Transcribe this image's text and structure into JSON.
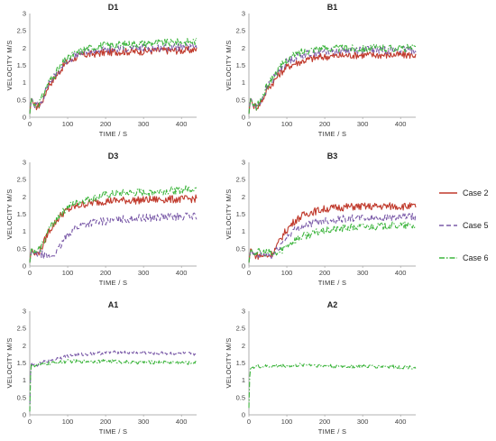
{
  "colors": {
    "case2": "#c0392b",
    "case5": "#7a5aa8",
    "case6": "#3db53d",
    "axis": "#999999",
    "text": "#333333"
  },
  "legend": {
    "placement": "right",
    "items": [
      {
        "label": "Case 2",
        "color": "#c0392b",
        "dash": "solid"
      },
      {
        "label": "Case 5",
        "color": "#7a5aa8",
        "dash": "dashed"
      },
      {
        "label": "Case 6",
        "color": "#3db53d",
        "dash": "dashdot"
      }
    ]
  },
  "chart_data": [
    {
      "type": "line",
      "title": "D1",
      "xlabel": "TIME / S",
      "ylabel": "VELOCITY M/S",
      "xlim": [
        0,
        440
      ],
      "ylim": [
        0,
        3
      ],
      "xticks": [
        0,
        100,
        200,
        300,
        400
      ],
      "yticks": [
        0,
        0.5,
        1,
        1.5,
        2,
        2.5,
        3
      ],
      "yticklabels": [
        "0",
        "0.5",
        "1",
        "1.5",
        "2",
        "2.5",
        "3"
      ],
      "series": [
        {
          "name": "Case 2",
          "x": [
            0,
            5,
            10,
            20,
            30,
            40,
            50,
            60,
            70,
            80,
            90,
            100,
            120,
            140,
            160,
            180,
            200,
            240,
            280,
            320,
            360,
            400,
            440
          ],
          "y": [
            0.1,
            0.6,
            0.35,
            0.3,
            0.4,
            0.65,
            0.95,
            1.05,
            1.2,
            1.35,
            1.5,
            1.6,
            1.72,
            1.8,
            1.82,
            1.85,
            1.87,
            1.9,
            1.9,
            1.92,
            1.93,
            1.93,
            1.95
          ]
        },
        {
          "name": "Case 5",
          "x": [
            0,
            5,
            10,
            20,
            30,
            40,
            50,
            60,
            70,
            80,
            90,
            100,
            120,
            140,
            160,
            180,
            200,
            240,
            280,
            320,
            360,
            400,
            440
          ],
          "y": [
            0.1,
            0.6,
            0.35,
            0.35,
            0.45,
            0.7,
            1.0,
            1.1,
            1.25,
            1.4,
            1.55,
            1.65,
            1.78,
            1.85,
            1.9,
            1.92,
            1.95,
            1.98,
            2.0,
            2.0,
            2.02,
            2.03,
            2.05
          ]
        },
        {
          "name": "Case 6",
          "x": [
            0,
            5,
            10,
            20,
            30,
            40,
            50,
            60,
            70,
            80,
            90,
            100,
            120,
            140,
            160,
            180,
            200,
            240,
            280,
            320,
            360,
            400,
            440
          ],
          "y": [
            0.1,
            0.6,
            0.35,
            0.35,
            0.5,
            0.75,
            1.05,
            1.15,
            1.3,
            1.45,
            1.6,
            1.7,
            1.85,
            1.95,
            2.0,
            2.05,
            2.08,
            2.1,
            2.12,
            2.15,
            2.15,
            2.17,
            2.2
          ]
        }
      ]
    },
    {
      "type": "line",
      "title": "B1",
      "xlabel": "TIME / S",
      "ylabel": "VELOCITY M/S",
      "xlim": [
        0,
        440
      ],
      "ylim": [
        0,
        3
      ],
      "xticks": [
        0,
        100,
        200,
        300,
        400
      ],
      "yticks": [
        0,
        0.5,
        1,
        1.5,
        2,
        2.5,
        3
      ],
      "yticklabels": [
        "0",
        "0.5",
        "1",
        "1.5",
        "2",
        "2.5",
        "3"
      ],
      "series": [
        {
          "name": "Case 2",
          "x": [
            0,
            5,
            10,
            20,
            30,
            40,
            50,
            60,
            70,
            80,
            90,
            100,
            120,
            140,
            160,
            180,
            200,
            240,
            280,
            320,
            360,
            400,
            440
          ],
          "y": [
            0.1,
            0.6,
            0.35,
            0.3,
            0.4,
            0.6,
            0.85,
            0.95,
            1.1,
            1.25,
            1.35,
            1.45,
            1.55,
            1.62,
            1.68,
            1.72,
            1.75,
            1.78,
            1.8,
            1.8,
            1.8,
            1.8,
            1.8
          ]
        },
        {
          "name": "Case 5",
          "x": [
            0,
            5,
            10,
            20,
            30,
            40,
            50,
            60,
            70,
            80,
            90,
            100,
            120,
            140,
            160,
            180,
            200,
            240,
            280,
            320,
            360,
            400,
            440
          ],
          "y": [
            0.1,
            0.6,
            0.35,
            0.3,
            0.45,
            0.65,
            0.9,
            1.05,
            1.2,
            1.35,
            1.5,
            1.6,
            1.72,
            1.8,
            1.85,
            1.88,
            1.9,
            1.92,
            1.95,
            1.95,
            1.95,
            1.95,
            1.95
          ]
        },
        {
          "name": "Case 6",
          "x": [
            0,
            5,
            10,
            20,
            30,
            40,
            50,
            60,
            70,
            80,
            90,
            100,
            120,
            140,
            160,
            180,
            200,
            240,
            280,
            320,
            360,
            400,
            440
          ],
          "y": [
            0.1,
            0.6,
            0.35,
            0.3,
            0.45,
            0.7,
            0.95,
            1.1,
            1.25,
            1.4,
            1.55,
            1.65,
            1.8,
            1.9,
            1.95,
            2.0,
            2.0,
            2.0,
            2.0,
            2.0,
            2.0,
            2.0,
            2.0
          ]
        }
      ]
    },
    {
      "type": "line",
      "title": "D3",
      "xlabel": "TIME / S",
      "ylabel": "VELOCITY M/S",
      "xlim": [
        0,
        440
      ],
      "ylim": [
        0,
        3
      ],
      "xticks": [
        0,
        100,
        200,
        300,
        400
      ],
      "yticks": [
        0,
        0.5,
        1,
        1.5,
        2,
        2.5,
        3
      ],
      "yticklabels": [
        "0",
        "0.5",
        "1",
        "1.5",
        "2",
        "2.5",
        "3"
      ],
      "series": [
        {
          "name": "Case 2",
          "x": [
            0,
            5,
            10,
            20,
            30,
            40,
            50,
            60,
            70,
            80,
            90,
            100,
            120,
            140,
            160,
            180,
            200,
            240,
            280,
            320,
            360,
            400,
            440
          ],
          "y": [
            0.1,
            0.55,
            0.35,
            0.35,
            0.5,
            0.75,
            1.0,
            1.15,
            1.3,
            1.45,
            1.55,
            1.62,
            1.72,
            1.78,
            1.82,
            1.85,
            1.88,
            1.9,
            1.9,
            1.92,
            1.93,
            1.93,
            1.95
          ]
        },
        {
          "name": "Case 5",
          "x": [
            0,
            5,
            10,
            20,
            30,
            40,
            50,
            60,
            70,
            80,
            90,
            100,
            120,
            140,
            160,
            180,
            200,
            240,
            280,
            320,
            360,
            400,
            440
          ],
          "y": [
            0.1,
            0.45,
            0.35,
            0.35,
            0.35,
            0.3,
            0.25,
            0.3,
            0.4,
            0.55,
            0.75,
            0.9,
            1.1,
            1.2,
            1.25,
            1.28,
            1.3,
            1.35,
            1.38,
            1.4,
            1.42,
            1.43,
            1.45
          ]
        },
        {
          "name": "Case 6",
          "x": [
            0,
            5,
            10,
            20,
            30,
            40,
            50,
            60,
            70,
            80,
            90,
            100,
            120,
            140,
            160,
            180,
            200,
            240,
            280,
            320,
            360,
            400,
            440
          ],
          "y": [
            0.1,
            0.55,
            0.35,
            0.4,
            0.55,
            0.8,
            1.05,
            1.2,
            1.35,
            1.5,
            1.6,
            1.7,
            1.82,
            1.9,
            1.95,
            2.0,
            2.05,
            2.1,
            2.12,
            2.15,
            2.17,
            2.2,
            2.25
          ]
        }
      ]
    },
    {
      "type": "line",
      "title": "B3",
      "xlabel": "TIME / S",
      "ylabel": "VELOCITY M/S",
      "xlim": [
        0,
        440
      ],
      "ylim": [
        0,
        3
      ],
      "xticks": [
        0,
        100,
        200,
        300,
        400
      ],
      "yticks": [
        0,
        0.5,
        1,
        1.5,
        2,
        2.5,
        3
      ],
      "yticklabels": [
        "0",
        "0.5",
        "1",
        "1.5",
        "2",
        "2.5",
        "3"
      ],
      "series": [
        {
          "name": "Case 2",
          "x": [
            0,
            5,
            10,
            20,
            30,
            40,
            50,
            60,
            70,
            80,
            90,
            100,
            120,
            140,
            160,
            180,
            200,
            240,
            280,
            320,
            360,
            400,
            440
          ],
          "y": [
            0.1,
            0.55,
            0.35,
            0.3,
            0.3,
            0.3,
            0.3,
            0.35,
            0.5,
            0.7,
            0.9,
            1.05,
            1.3,
            1.45,
            1.55,
            1.6,
            1.65,
            1.7,
            1.72,
            1.72,
            1.73,
            1.73,
            1.72
          ]
        },
        {
          "name": "Case 5",
          "x": [
            0,
            5,
            10,
            20,
            30,
            40,
            50,
            60,
            70,
            80,
            90,
            100,
            120,
            140,
            160,
            180,
            200,
            240,
            280,
            320,
            360,
            400,
            440
          ],
          "y": [
            0.1,
            0.5,
            0.35,
            0.3,
            0.3,
            0.3,
            0.3,
            0.3,
            0.4,
            0.55,
            0.7,
            0.85,
            1.05,
            1.15,
            1.22,
            1.28,
            1.32,
            1.36,
            1.38,
            1.4,
            1.4,
            1.41,
            1.42
          ]
        },
        {
          "name": "Case 6",
          "x": [
            0,
            5,
            10,
            20,
            30,
            40,
            50,
            60,
            70,
            80,
            90,
            100,
            120,
            140,
            160,
            180,
            200,
            240,
            280,
            320,
            360,
            400,
            440
          ],
          "y": [
            0.1,
            0.5,
            0.4,
            0.4,
            0.4,
            0.4,
            0.4,
            0.35,
            0.35,
            0.4,
            0.5,
            0.6,
            0.75,
            0.85,
            0.92,
            0.98,
            1.02,
            1.08,
            1.12,
            1.15,
            1.16,
            1.18,
            1.15
          ]
        }
      ]
    },
    {
      "type": "line",
      "title": "A1",
      "xlabel": "TIME / S",
      "ylabel": "VELOCITY M/S",
      "xlim": [
        0,
        440
      ],
      "ylim": [
        0,
        3
      ],
      "xticks": [
        0,
        100,
        200,
        300,
        400
      ],
      "yticks": [
        0,
        0.5,
        1,
        1.5,
        2,
        2.5,
        3
      ],
      "yticklabels": [
        "0",
        "0.5",
        "1",
        "1.5",
        "2",
        "2.5",
        "3"
      ],
      "series": [
        {
          "name": "Case 5",
          "x": [
            0,
            3,
            6,
            10,
            20,
            30,
            40,
            60,
            80,
            100,
            140,
            180,
            220,
            260,
            300,
            340,
            380,
            420,
            440
          ],
          "y": [
            0.1,
            1.6,
            1.45,
            1.45,
            1.45,
            1.5,
            1.55,
            1.6,
            1.65,
            1.7,
            1.75,
            1.78,
            1.8,
            1.8,
            1.8,
            1.78,
            1.78,
            1.77,
            1.75
          ]
        },
        {
          "name": "Case 6",
          "x": [
            0,
            3,
            6,
            10,
            20,
            30,
            40,
            60,
            80,
            100,
            140,
            180,
            220,
            260,
            300,
            340,
            380,
            420,
            440
          ],
          "y": [
            0.1,
            1.55,
            1.4,
            1.42,
            1.45,
            1.45,
            1.48,
            1.5,
            1.52,
            1.55,
            1.55,
            1.55,
            1.55,
            1.52,
            1.52,
            1.52,
            1.52,
            1.5,
            1.52
          ]
        }
      ]
    },
    {
      "type": "line",
      "title": "A2",
      "xlabel": "TIME / S",
      "ylabel": "VELOCITY M/S",
      "xlim": [
        0,
        440
      ],
      "ylim": [
        0,
        3
      ],
      "xticks": [
        0,
        100,
        200,
        300,
        400
      ],
      "yticks": [
        0,
        0.5,
        1,
        1.5,
        2,
        2.5,
        3
      ],
      "yticklabels": [
        "0",
        "0.5",
        "1",
        "1.5",
        "2",
        "2.5",
        "3"
      ],
      "series": [
        {
          "name": "Case 6",
          "x": [
            0,
            3,
            6,
            10,
            20,
            40,
            60,
            80,
            100,
            120,
            140,
            160,
            180,
            200,
            240,
            280,
            320,
            360,
            400,
            440
          ],
          "y": [
            0.2,
            1.4,
            1.35,
            1.38,
            1.4,
            1.4,
            1.4,
            1.42,
            1.42,
            1.42,
            1.45,
            1.45,
            1.43,
            1.42,
            1.4,
            1.4,
            1.4,
            1.4,
            1.38,
            1.38
          ]
        }
      ]
    }
  ]
}
